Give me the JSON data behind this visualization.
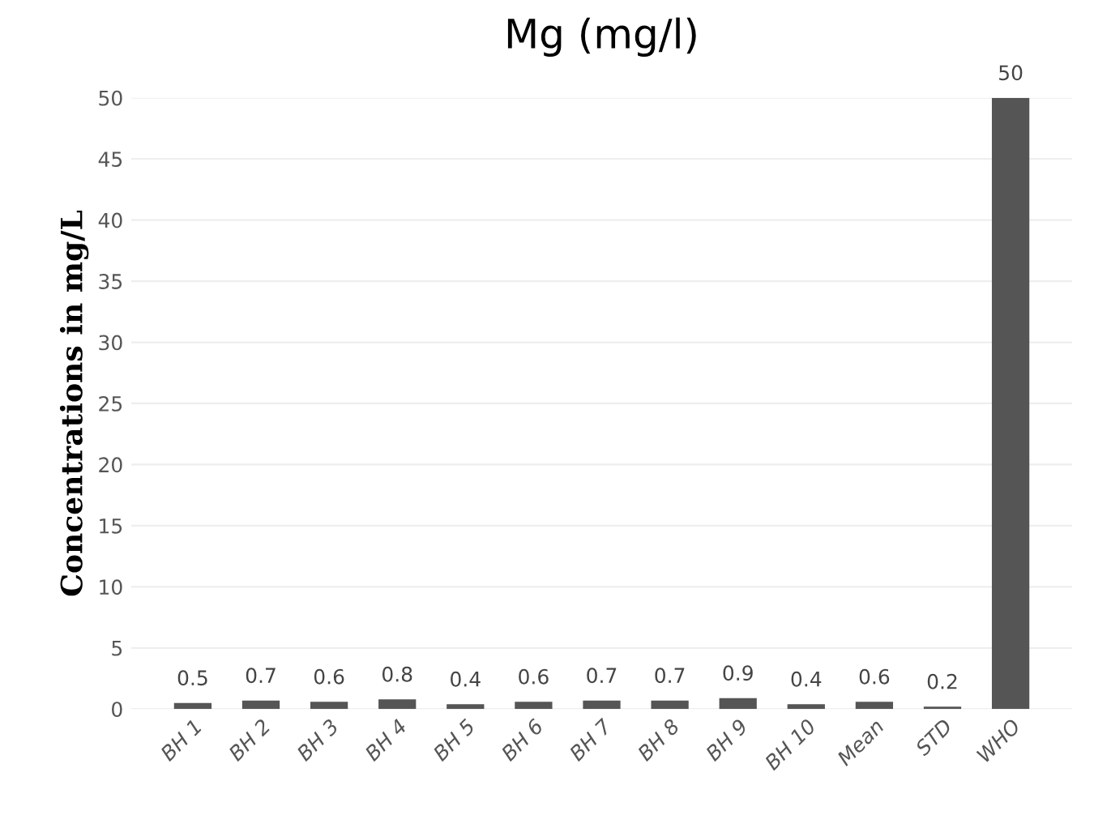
{
  "chart_data": {
    "type": "bar",
    "title": "Mg (mg/l)",
    "ylabel": "Concentrations in mg/L",
    "categories": [
      "BH 1",
      "BH 2",
      "BH 3",
      "BH 4",
      "BH 5",
      "BH 6",
      "BH 7",
      "BH 8",
      "BH 9",
      "BH 10",
      "Mean",
      "STD",
      "WHO"
    ],
    "values": [
      0.5,
      0.7,
      0.6,
      0.8,
      0.4,
      0.6,
      0.7,
      0.7,
      0.9,
      0.4,
      0.6,
      0.2,
      50
    ],
    "color": "#555555",
    "ylim": [
      0,
      50
    ],
    "yticks": [
      0,
      5,
      10,
      15,
      20,
      25,
      30,
      35,
      40,
      45,
      50
    ],
    "grid": "y",
    "data_labels": true
  }
}
